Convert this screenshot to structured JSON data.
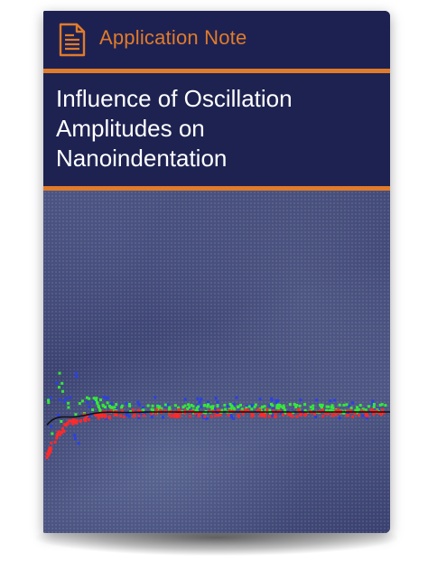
{
  "header": {
    "label": "Application Note",
    "icon": "document-icon"
  },
  "title": {
    "lines": [
      "Influence of Oscillation",
      "Amplitudes on",
      "Nanoindentation"
    ]
  },
  "colors": {
    "accent": "#e07b2a",
    "header_bg": "#1d2152",
    "cover_bg": "#2c315e",
    "series_red": "#ff2a2a",
    "series_green": "#35e83a",
    "series_blue": "#2a40e6",
    "series_black": "#111111"
  }
}
